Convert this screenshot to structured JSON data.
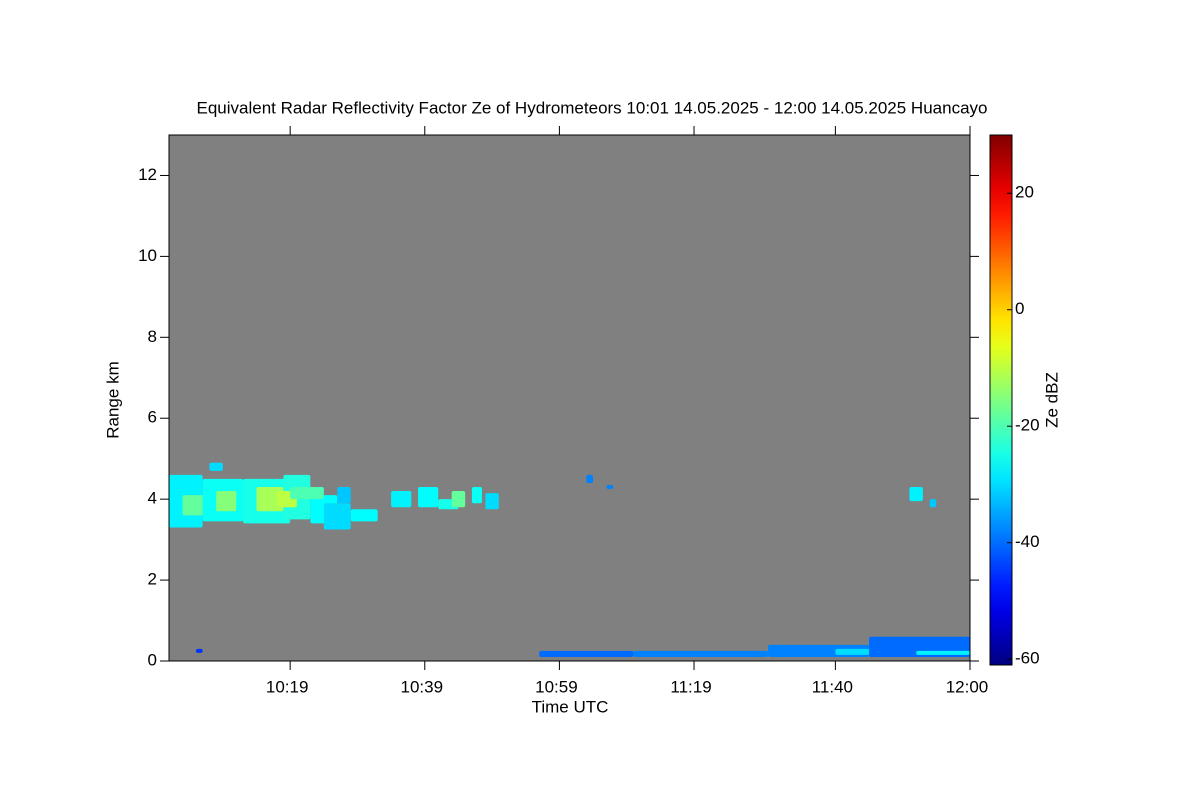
{
  "chart_data": {
    "type": "heatmap",
    "title": "Equivalent Radar Reflectivity Factor Ze of Hydrometeors   10:01 14.05.2025 - 12:00 14.05.2025 Huancayo",
    "x_label": "Time UTC",
    "y_label": "Range km",
    "colorbar_label": "Ze dBZ",
    "background": "#808080",
    "xlim": [
      601,
      720
    ],
    "xticks": [
      {
        "value": 619,
        "label": "10:19"
      },
      {
        "value": 639,
        "label": "10:39"
      },
      {
        "value": 659,
        "label": "10:59"
      },
      {
        "value": 679,
        "label": "11:19"
      },
      {
        "value": 700,
        "label": "11:40"
      },
      {
        "value": 720,
        "label": "12:00"
      }
    ],
    "ylim": [
      0,
      13
    ],
    "yticks": [
      0,
      2,
      4,
      6,
      8,
      10,
      12
    ],
    "zlim": [
      -61,
      30
    ],
    "zticks": [
      -60,
      -40,
      -20,
      0,
      20
    ],
    "colormap": "jet",
    "x0": [
      601,
      603,
      606,
      608,
      612,
      614,
      618,
      617,
      622,
      624,
      628,
      607,
      619,
      626,
      634,
      638,
      641,
      643,
      646,
      648,
      663,
      666,
      711,
      714,
      656,
      670,
      690,
      700,
      705,
      712,
      605
    ],
    "x1": [
      606,
      608,
      612,
      611,
      619,
      618,
      622,
      620,
      626,
      628,
      632,
      609,
      624,
      628,
      637,
      641,
      644,
      645,
      647.5,
      650,
      664,
      667,
      713,
      715,
      670,
      690,
      705,
      712,
      720,
      720,
      606
    ],
    "y0": [
      3.3,
      3.6,
      3.45,
      3.7,
      3.4,
      3.7,
      3.5,
      3.8,
      3.4,
      3.25,
      3.45,
      4.7,
      4.0,
      3.9,
      3.8,
      3.8,
      3.75,
      3.8,
      3.9,
      3.75,
      4.4,
      4.25,
      3.95,
      3.8,
      0.1,
      0.1,
      0.1,
      0.15,
      0.1,
      0.15,
      0.2
    ],
    "y1": [
      4.6,
      4.1,
      4.5,
      4.2,
      4.5,
      4.3,
      4.6,
      4.2,
      4.1,
      3.9,
      3.75,
      4.9,
      4.3,
      4.3,
      4.2,
      4.3,
      4.0,
      4.2,
      4.3,
      4.15,
      4.6,
      4.35,
      4.3,
      4.0,
      0.25,
      0.25,
      0.4,
      0.3,
      0.6,
      0.25,
      0.3
    ],
    "z": [
      -28,
      -18,
      -26,
      -15,
      -25,
      -12,
      -24,
      -10,
      -27,
      -30,
      -27,
      -30,
      -20,
      -32,
      -28,
      -27,
      -25,
      -18,
      -26,
      -30,
      -38,
      -38,
      -28,
      -32,
      -40,
      -38,
      -38,
      -30,
      -40,
      -28,
      -45
    ]
  }
}
